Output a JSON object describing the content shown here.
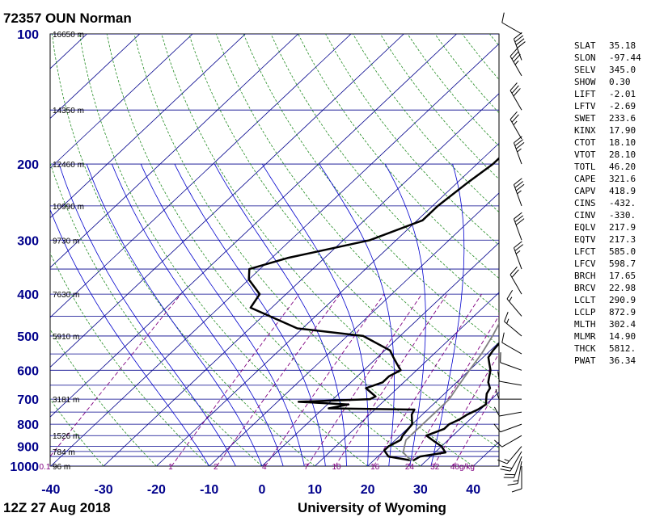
{
  "header": {
    "title": "72357 OUN Norman"
  },
  "footer": {
    "time": "12Z 27 Aug 2018",
    "source": "University of Wyoming"
  },
  "colors": {
    "isobar": "#00008b",
    "isotherm": "#00008b",
    "dry_adiabat": "#228b22",
    "moist_adiabat": "#0000cd",
    "mixing_ratio": "#800080",
    "temperature": "#000000",
    "dewpoint": "#000000",
    "parcel": "#808080",
    "label_blue": "#00008b"
  },
  "chart_data": {
    "type": "line",
    "chart_kind": "skew-t log-p sounding",
    "title": "72357 OUN Norman",
    "xlabel": "",
    "ylabel": "",
    "xlim": [
      -40,
      45
    ],
    "ylim": [
      1000,
      100
    ],
    "y_scale": "log (inverted)",
    "temperature_ticks": [
      "-40",
      "-30",
      "-20",
      "-10",
      "0",
      "10",
      "20",
      "30",
      "40"
    ],
    "pressure_ticks": [
      "100",
      "200",
      "300",
      "400",
      "500",
      "600",
      "700",
      "800",
      "900",
      "1000"
    ],
    "isobars_hpa": [
      100,
      150,
      200,
      250,
      300,
      350,
      400,
      450,
      500,
      550,
      600,
      650,
      700,
      750,
      800,
      850,
      900,
      925,
      950,
      1000
    ],
    "height_labels": [
      {
        "p": 100,
        "text": "16650 m"
      },
      {
        "p": 150,
        "text": "14350 m"
      },
      {
        "p": 200,
        "text": "12460 m"
      },
      {
        "p": 250,
        "text": "10990 m"
      },
      {
        "p": 300,
        "text": "9730 m"
      },
      {
        "p": 400,
        "text": "7630 m"
      },
      {
        "p": 500,
        "text": "5910 m"
      },
      {
        "p": 700,
        "text": "3181 m"
      },
      {
        "p": 850,
        "text": "1526 m"
      },
      {
        "p": 925,
        "text": "784 m"
      },
      {
        "p": 1000,
        "text": "96 m"
      }
    ],
    "mixing_ratio_labels": [
      {
        "w": 0.1,
        "text": "0.1"
      },
      {
        "w": 1,
        "text": "1"
      },
      {
        "w": 2,
        "text": "2"
      },
      {
        "w": 4,
        "text": "4"
      },
      {
        "w": 7,
        "text": "7"
      },
      {
        "w": 10,
        "text": "10"
      },
      {
        "w": 16,
        "text": "16"
      },
      {
        "w": 24,
        "text": "24"
      },
      {
        "w": 32,
        "text": "32"
      },
      {
        "w": 40,
        "text": "40g/kg"
      }
    ],
    "series": [
      {
        "points": [
          [
            970,
            27.5
          ],
          [
            950,
            28
          ],
          [
            930,
            32
          ],
          [
            900,
            30
          ],
          [
            870,
            27
          ],
          [
            850,
            25
          ],
          [
            820,
            27
          ],
          [
            800,
            27
          ],
          [
            780,
            28
          ],
          [
            760,
            28.5
          ],
          [
            740,
            29.5
          ],
          [
            720,
            30
          ],
          [
            700,
            29
          ],
          [
            680,
            28
          ],
          [
            660,
            27.5
          ],
          [
            640,
            26
          ],
          [
            620,
            25
          ],
          [
            600,
            24
          ],
          [
            580,
            22.5
          ],
          [
            560,
            21
          ],
          [
            540,
            20.5
          ],
          [
            500,
            20
          ],
          [
            480,
            19
          ],
          [
            450,
            18.5
          ],
          [
            420,
            18
          ],
          [
            400,
            17
          ],
          [
            370,
            15
          ],
          [
            340,
            13
          ],
          [
            320,
            11
          ],
          [
            300,
            8
          ],
          [
            280,
            6
          ],
          [
            250,
            2
          ],
          [
            220,
            0
          ],
          [
            200,
            -1
          ],
          [
            180,
            -3
          ],
          [
            160,
            -5
          ],
          [
            150,
            -7
          ],
          [
            140,
            -8
          ],
          [
            130,
            -9
          ],
          [
            120,
            -9
          ],
          [
            110,
            -8
          ],
          [
            105,
            -5
          ],
          [
            100,
            -3
          ]
        ]
      },
      {
        "points": [
          [
            970,
            27
          ],
          [
            950,
            22
          ],
          [
            920,
            20
          ],
          [
            900,
            20
          ],
          [
            870,
            21
          ],
          [
            850,
            20.5
          ],
          [
            800,
            20
          ],
          [
            760,
            18
          ],
          [
            740,
            17.5
          ],
          [
            735,
            1
          ],
          [
            720,
            4
          ],
          [
            710,
            -6
          ],
          [
            700,
            7
          ],
          [
            690,
            7.5
          ],
          [
            660,
            4
          ],
          [
            640,
            6
          ],
          [
            620,
            6
          ],
          [
            600,
            7
          ],
          [
            580,
            5
          ],
          [
            560,
            3
          ],
          [
            540,
            1
          ],
          [
            500,
            -7
          ],
          [
            480,
            -21
          ],
          [
            430,
            -34
          ],
          [
            400,
            -35
          ],
          [
            370,
            -40
          ],
          [
            350,
            -42
          ],
          [
            330,
            -37
          ],
          [
            300,
            -25
          ],
          [
            270,
            -19
          ],
          [
            250,
            -19
          ],
          [
            220,
            -18
          ],
          [
            200,
            -17
          ],
          [
            170,
            -17
          ],
          [
            150,
            -16
          ],
          [
            130,
            -14
          ],
          [
            115,
            -8
          ],
          [
            105,
            0
          ],
          [
            100,
            5
          ]
        ]
      },
      {
        "points": [
          [
            970,
            27
          ],
          [
            930,
            24
          ],
          [
            900,
            23
          ],
          [
            870,
            22
          ],
          [
            850,
            22
          ],
          [
            800,
            22
          ],
          [
            750,
            22
          ],
          [
            700,
            22
          ],
          [
            650,
            21
          ],
          [
            600,
            20
          ],
          [
            550,
            19
          ],
          [
            500,
            17.5
          ],
          [
            450,
            15.5
          ],
          [
            400,
            13
          ],
          [
            350,
            10
          ],
          [
            300,
            5
          ],
          [
            250,
            -1
          ],
          [
            200,
            -8
          ],
          [
            150,
            -18
          ],
          [
            120,
            -25
          ],
          [
            100,
            -34
          ]
        ]
      }
    ],
    "wind_barbs": [
      {
        "p": 1000,
        "dir": 180,
        "kt": 10
      },
      {
        "p": 975,
        "dir": 190,
        "kt": 15
      },
      {
        "p": 950,
        "dir": 200,
        "kt": 20
      },
      {
        "p": 925,
        "dir": 210,
        "kt": 20
      },
      {
        "p": 900,
        "dir": 220,
        "kt": 15
      },
      {
        "p": 850,
        "dir": 240,
        "kt": 10
      },
      {
        "p": 800,
        "dir": 250,
        "kt": 10
      },
      {
        "p": 750,
        "dir": 260,
        "kt": 10
      },
      {
        "p": 700,
        "dir": 270,
        "kt": 10
      },
      {
        "p": 650,
        "dir": 280,
        "kt": 10
      },
      {
        "p": 600,
        "dir": 290,
        "kt": 10
      },
      {
        "p": 550,
        "dir": 300,
        "kt": 10
      },
      {
        "p": 500,
        "dir": 310,
        "kt": 15
      },
      {
        "p": 450,
        "dir": 320,
        "kt": 15
      },
      {
        "p": 400,
        "dir": 330,
        "kt": 20
      },
      {
        "p": 350,
        "dir": 340,
        "kt": 25
      },
      {
        "p": 300,
        "dir": 340,
        "kt": 30
      },
      {
        "p": 250,
        "dir": 340,
        "kt": 35
      },
      {
        "p": 200,
        "dir": 340,
        "kt": 35
      },
      {
        "p": 175,
        "dir": 330,
        "kt": 25
      },
      {
        "p": 150,
        "dir": 330,
        "kt": 30
      },
      {
        "p": 125,
        "dir": 330,
        "kt": 35
      },
      {
        "p": 115,
        "dir": 340,
        "kt": 40
      },
      {
        "p": 100,
        "dir": 300,
        "kt": 10
      }
    ]
  },
  "indices": [
    {
      "key": "SLAT",
      "value": "35.18"
    },
    {
      "key": "SLON",
      "value": "-97.44"
    },
    {
      "key": "SELV",
      "value": "345.0"
    },
    {
      "key": "SHOW",
      "value": "0.30"
    },
    {
      "key": "LIFT",
      "value": "-2.01"
    },
    {
      "key": "LFTV",
      "value": "-2.69"
    },
    {
      "key": "SWET",
      "value": "233.6"
    },
    {
      "key": "KINX",
      "value": "17.90"
    },
    {
      "key": "CTOT",
      "value": "18.10"
    },
    {
      "key": "VTOT",
      "value": "28.10"
    },
    {
      "key": "TOTL",
      "value": "46.20"
    },
    {
      "key": "CAPE",
      "value": "321.6"
    },
    {
      "key": "CAPV",
      "value": "418.9"
    },
    {
      "key": "CINS",
      "value": "-432."
    },
    {
      "key": "CINV",
      "value": "-330."
    },
    {
      "key": "EQLV",
      "value": "217.9"
    },
    {
      "key": "EQTV",
      "value": "217.3"
    },
    {
      "key": "LFCT",
      "value": "585.0"
    },
    {
      "key": "LFCV",
      "value": "598.7"
    },
    {
      "key": "BRCH",
      "value": "17.65"
    },
    {
      "key": "BRCV",
      "value": "22.98"
    },
    {
      "key": "LCLT",
      "value": "290.9"
    },
    {
      "key": "LCLP",
      "value": "872.9"
    },
    {
      "key": "MLTH",
      "value": "302.4"
    },
    {
      "key": "MLMR",
      "value": "14.90"
    },
    {
      "key": "THCK",
      "value": "5812."
    },
    {
      "key": "PWAT",
      "value": "36.34"
    }
  ]
}
